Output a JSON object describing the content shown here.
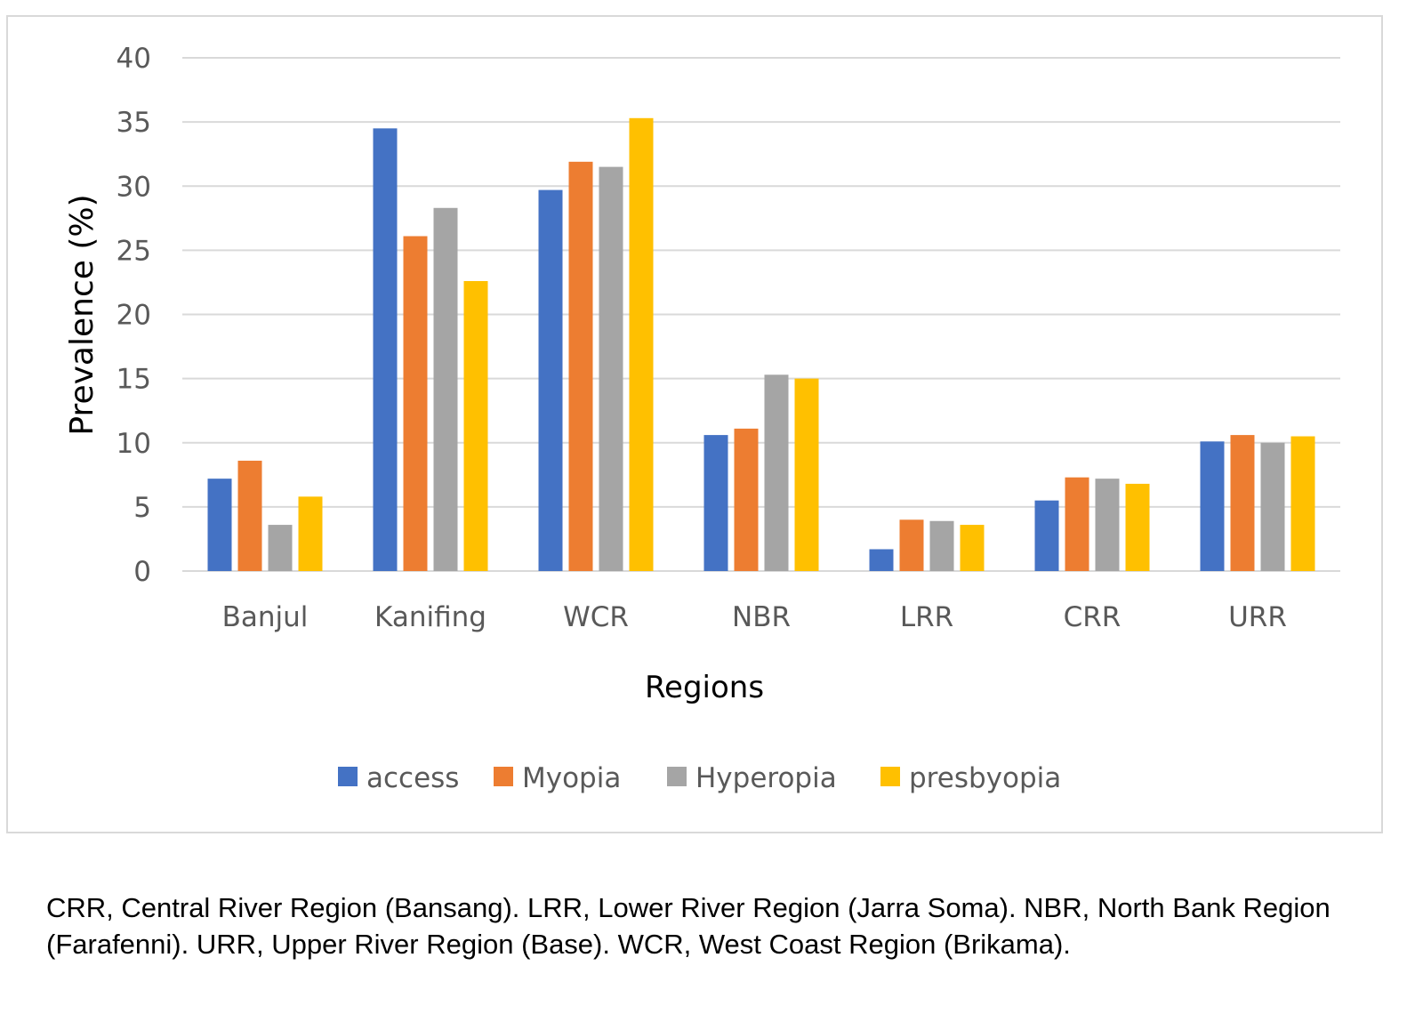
{
  "chart_data": {
    "type": "bar",
    "title": "",
    "xlabel": "Regions",
    "ylabel": "Prevalence (%)",
    "ylim": [
      0,
      40
    ],
    "yticks": [
      0,
      5,
      10,
      15,
      20,
      25,
      30,
      35,
      40
    ],
    "grid": true,
    "legend_position": "bottom",
    "categories": [
      "Banjul",
      "Kanifing",
      "WCR",
      "NBR",
      "LRR",
      "CRR",
      "URR"
    ],
    "series": [
      {
        "name": "access",
        "color": "#4472C4",
        "values": [
          7.2,
          34.5,
          29.7,
          10.6,
          1.7,
          5.5,
          10.1
        ]
      },
      {
        "name": "Myopia",
        "color": "#ED7D31",
        "values": [
          8.6,
          26.1,
          31.9,
          11.1,
          4.0,
          7.3,
          10.6
        ]
      },
      {
        "name": "Hyperopia",
        "color": "#A5A5A5",
        "values": [
          3.6,
          28.3,
          31.5,
          15.3,
          3.9,
          7.2,
          10.0
        ]
      },
      {
        "name": "presbyopia",
        "color": "#FFC000",
        "values": [
          5.8,
          22.6,
          35.3,
          15.0,
          3.6,
          6.8,
          10.5
        ]
      }
    ]
  },
  "caption": "CRR, Central River Region (Bansang). LRR, Lower River Region (Jarra Soma). NBR, North Bank Region (Farafenni). URR, Upper River Region (Base). WCR, West Coast Region (Brikama)."
}
